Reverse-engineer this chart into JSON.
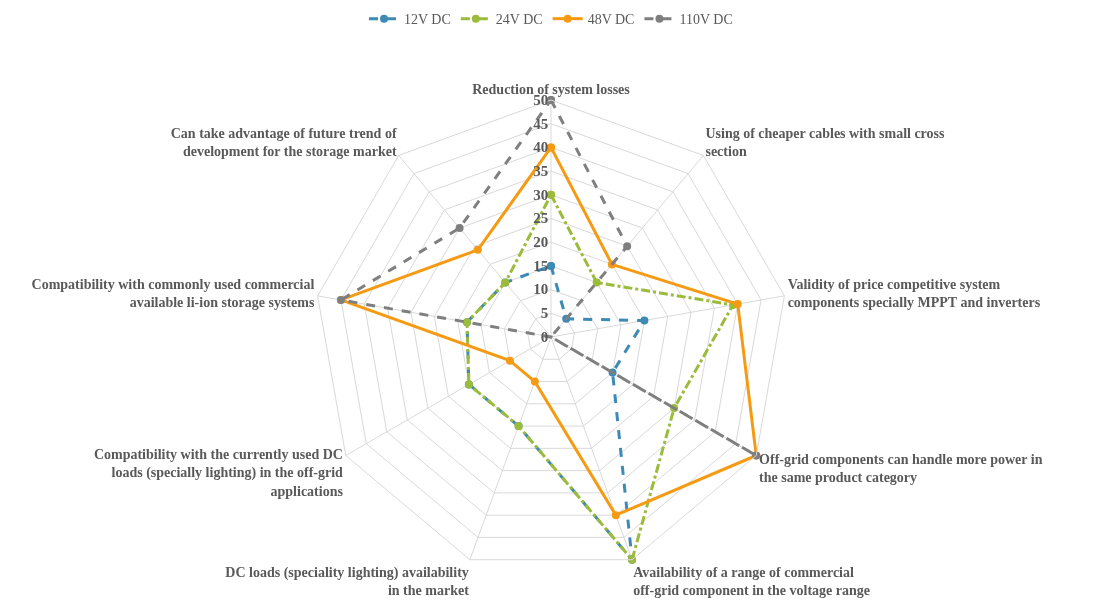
{
  "chart_data": {
    "type": "radar",
    "categories": [
      "Reduction of system losses",
      "Using of cheaper cables with small cross section",
      "Validity of price competitive system components specially MPPT and inverters",
      "Off-grid components can handle more power in the same product category",
      "Availability of a range of commercial off-grid component in the voltage range",
      "DC loads (speciality lighting) availability in the market",
      "Compatibility with the currently used DC loads (specially lighting) in the off-grid applications",
      "Compatibility with commonly used commercial available li-ion storage systems",
      "Can take advantage of future trend of development for the storage market"
    ],
    "series": [
      {
        "name": "12V DC",
        "color": "#3d8ab5",
        "line_style": "dashed",
        "values": [
          15,
          5,
          20,
          15,
          50,
          20,
          20,
          18,
          15
        ]
      },
      {
        "name": "24V DC",
        "color": "#9bbb3b",
        "line_style": "dotted",
        "values": [
          30,
          15,
          39,
          30,
          50,
          20,
          20,
          18,
          15
        ]
      },
      {
        "name": "48V DC",
        "color": "#f59a12",
        "line_style": "solid",
        "values": [
          40,
          20,
          40,
          50,
          40,
          10,
          10,
          45,
          24
        ]
      },
      {
        "name": "110V DC",
        "color": "#7f7f7f",
        "line_style": "dashed",
        "values": [
          50,
          25,
          0,
          50,
          0,
          0,
          0,
          45,
          30
        ]
      }
    ],
    "ylim": [
      0,
      50
    ],
    "yticks": [
      0,
      5,
      10,
      15,
      20,
      25,
      30,
      35,
      40,
      45,
      50
    ],
    "grid": true,
    "legend": "top",
    "marker": "circle"
  }
}
